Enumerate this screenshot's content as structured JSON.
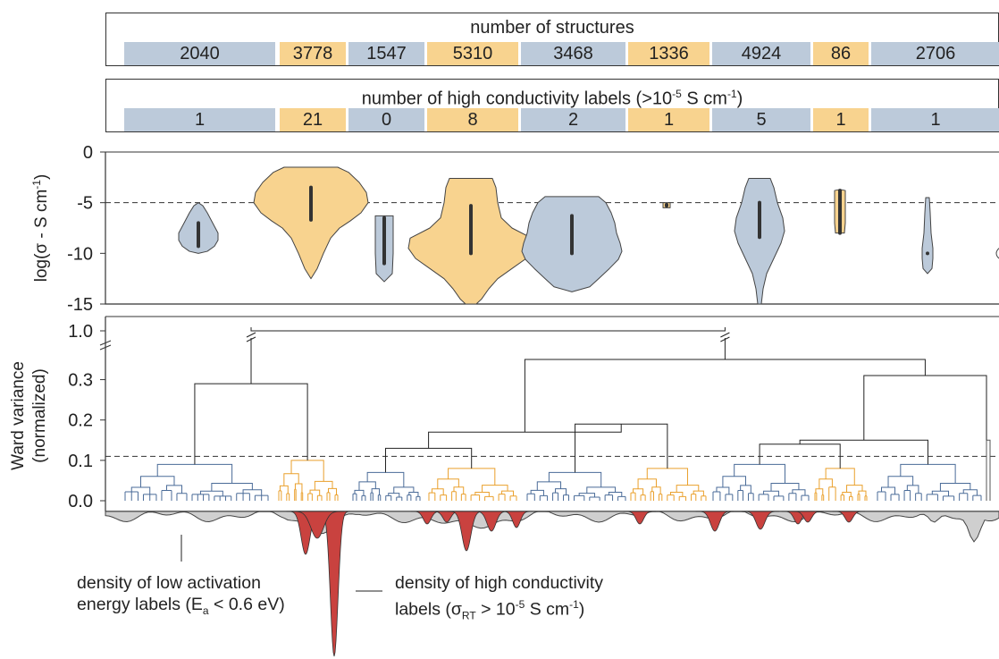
{
  "colors": {
    "blue_fill": "#bccada",
    "orange_fill": "#f8d38f",
    "blue_line": "#4a6b98",
    "orange_line": "#eaa02c",
    "red_density": "#c9423f",
    "grey_density": "#cfcfcf"
  },
  "bands": {
    "structures": {
      "title": "number of structures",
      "values": [
        "2040",
        "3778",
        "1547",
        "5310",
        "3468",
        "1336",
        "4924",
        "86",
        "2706"
      ]
    },
    "high_labels": {
      "title_main": "number of high conductivity labels (>10",
      "title_sup": "-5",
      "title_tail": " S cm",
      "title_sup2": "-1",
      "title_close": ")",
      "values": [
        "1",
        "21",
        "0",
        "8",
        "2",
        "1",
        "5",
        "1",
        "1"
      ]
    }
  },
  "violin": {
    "ylabel_main": "log(σ - S cm",
    "ylabel_sup": "-1",
    "ylabel_close": ")",
    "ticks": [
      "0",
      "-5",
      "-10",
      "-15"
    ]
  },
  "dendro": {
    "ylabel_line1": "Ward variance",
    "ylabel_line2": "(normalized)",
    "ticks": [
      "1.0",
      "0.3",
      "0.2",
      "0.1",
      "0.0"
    ]
  },
  "annotations": {
    "low_ea_line1": "density of low activation",
    "low_ea_line2_pre": "energy labels (E",
    "low_ea_sub": "a",
    "low_ea_line2_post": " < 0.6 eV)",
    "high_sigma_line1": "density of high conductivity",
    "high_sigma_line2_pre": "labels (σ",
    "high_sigma_sub": "RT",
    "high_sigma_line2_mid": " > 10",
    "high_sigma_sup": "-5",
    "high_sigma_line2_mid2": " S cm",
    "high_sigma_sup2": "-1",
    "high_sigma_line2_post": ")"
  },
  "chart_data": [
    {
      "type": "table",
      "title": "number of structures",
      "values": [
        2040,
        3778,
        1547,
        5310,
        3468,
        1336,
        4924,
        86,
        2706
      ]
    },
    {
      "type": "table",
      "title": "number of high conductivity labels (>10-5 S cm-1)",
      "values": [
        1,
        21,
        0,
        8,
        2,
        1,
        5,
        1,
        1
      ]
    },
    {
      "type": "violin",
      "ylabel": "log(σ - S cm-1)",
      "ylim": [
        -15,
        0
      ],
      "threshold": -5,
      "violins": [
        {
          "color": "blue",
          "min": -10,
          "max": -5,
          "q1": -9.3,
          "q3": -7.0
        },
        {
          "color": "orange",
          "min": -12.5,
          "max": -1.5,
          "q1": -6.7,
          "q3": -3.5
        },
        {
          "color": "blue",
          "min": -12.8,
          "max": -6.3,
          "q1": -11.0,
          "q3": -6.5
        },
        {
          "color": "orange",
          "min": -15,
          "max": -2.6,
          "q1": -10.0,
          "q3": -5.3
        },
        {
          "color": "blue",
          "min": -13.8,
          "max": -4.4,
          "q1": -10.0,
          "q3": -6.3
        },
        {
          "color": "orange",
          "min": -5.5,
          "max": -5.0,
          "q1": -5.3,
          "q3": -5.2
        },
        {
          "color": "blue",
          "min": -15,
          "max": -2.6,
          "q1": -8.4,
          "q3": -5.0
        },
        {
          "color": "orange",
          "min": -8.0,
          "max": -3.7,
          "q1": -8.0,
          "q3": -3.8
        },
        {
          "color": "blue",
          "min": -12.0,
          "max": -4.5,
          "q1": -10.0,
          "q3": -10.0
        }
      ]
    },
    {
      "type": "dendrogram",
      "ylabel": "Ward variance (normalized)",
      "ylim": [
        0,
        1.0
      ],
      "axis_break": true,
      "cut_threshold": 0.11,
      "clusters": [
        {
          "color": "blue",
          "height": 0.09
        },
        {
          "color": "orange",
          "height": 0.1
        },
        {
          "color": "blue",
          "height": 0.07
        },
        {
          "color": "orange",
          "height": 0.08
        },
        {
          "color": "blue",
          "height": 0.07
        },
        {
          "color": "orange",
          "height": 0.08
        },
        {
          "color": "blue",
          "height": 0.09
        },
        {
          "color": "orange",
          "height": 0.08
        },
        {
          "color": "blue",
          "height": 0.09
        }
      ],
      "merges": [
        {
          "height": 0.29
        },
        {
          "height": 0.17
        },
        {
          "height": 0.19
        },
        {
          "height": 0.35
        },
        {
          "height": 0.31
        },
        {
          "height": 0.15
        },
        {
          "height": 1.0
        }
      ]
    }
  ]
}
